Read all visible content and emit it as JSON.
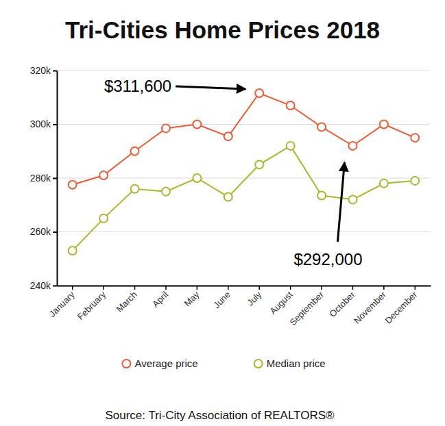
{
  "chart_data": {
    "type": "line",
    "title": "Tri-Cities Home Prices 2018",
    "categories": [
      "January",
      "February",
      "March",
      "April",
      "May",
      "June",
      "July",
      "August",
      "September",
      "October",
      "November",
      "December"
    ],
    "series": [
      {
        "name": "Average price",
        "color": "#ef5a34",
        "marker": "circle",
        "values": [
          277.5,
          281,
          290,
          298.5,
          300,
          295.5,
          311.6,
          307,
          299,
          292,
          300,
          295
        ]
      },
      {
        "name": "Median price",
        "color": "#a8b92c",
        "marker": "circle",
        "values": [
          253,
          265,
          276,
          275,
          280,
          273,
          285,
          292,
          273.5,
          272,
          278,
          279
        ]
      }
    ],
    "ylim": [
      240,
      320
    ],
    "yticks": [
      {
        "value": 240,
        "label": "240k"
      },
      {
        "value": 260,
        "label": "260k"
      },
      {
        "value": 280,
        "label": "280k"
      },
      {
        "value": 300,
        "label": "300k"
      },
      {
        "value": 320,
        "label": "320k"
      }
    ],
    "grid": true,
    "legend": "bottom",
    "annotations": [
      {
        "label": "$311,600",
        "value": 311.6
      },
      {
        "label": "$292,000",
        "value": 292
      }
    ],
    "source": "Source: Tri-City Association of REALTORS®"
  }
}
